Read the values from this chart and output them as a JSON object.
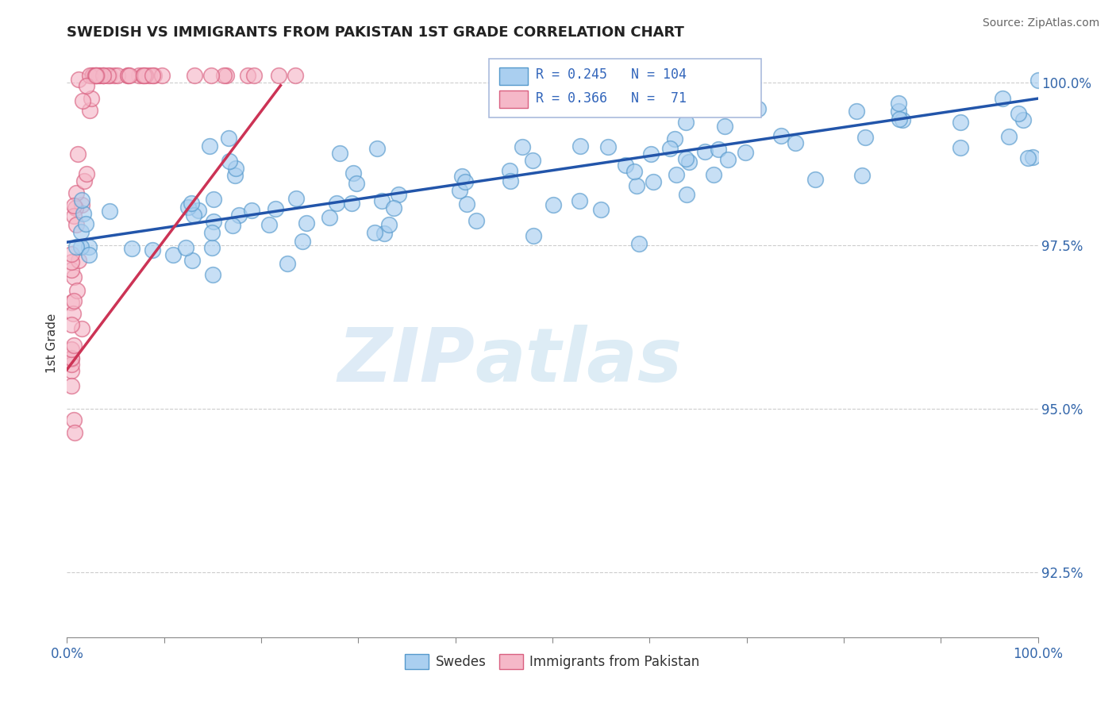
{
  "title": "SWEDISH VS IMMIGRANTS FROM PAKISTAN 1ST GRADE CORRELATION CHART",
  "source": "Source: ZipAtlas.com",
  "ylabel": "1st Grade",
  "xlim": [
    0.0,
    1.0
  ],
  "ylim": [
    0.915,
    1.005
  ],
  "yticks": [
    0.925,
    0.95,
    0.975,
    1.0
  ],
  "ytick_labels": [
    "92.5%",
    "95.0%",
    "97.5%",
    "100.0%"
  ],
  "xtick_positions": [
    0.0,
    0.1,
    0.2,
    0.3,
    0.4,
    0.5,
    0.6,
    0.7,
    0.8,
    0.9,
    1.0
  ],
  "xtick_labels_show": [
    "0.0%",
    "",
    "",
    "",
    "",
    "",
    "",
    "",
    "",
    "",
    "100.0%"
  ],
  "legend_swedes_label": "Swedes",
  "legend_pak_label": "Immigrants from Pakistan",
  "swedes_color": "#aacff0",
  "swedes_edge_color": "#5599cc",
  "pak_color": "#f5b8c8",
  "pak_edge_color": "#d96080",
  "swedes_line_color": "#2255aa",
  "pak_line_color": "#cc3355",
  "R_swedes": 0.245,
  "N_swedes": 104,
  "R_pak": 0.366,
  "N_pak": 71,
  "watermark_zip": "ZIP",
  "watermark_atlas": "atlas",
  "sw_line_x0": 0.0,
  "sw_line_x1": 1.0,
  "sw_line_y0": 0.9755,
  "sw_line_y1": 0.9975,
  "pk_line_x0": 0.0,
  "pk_line_x1": 0.22,
  "pk_line_y0": 0.956,
  "pk_line_y1": 0.9995
}
